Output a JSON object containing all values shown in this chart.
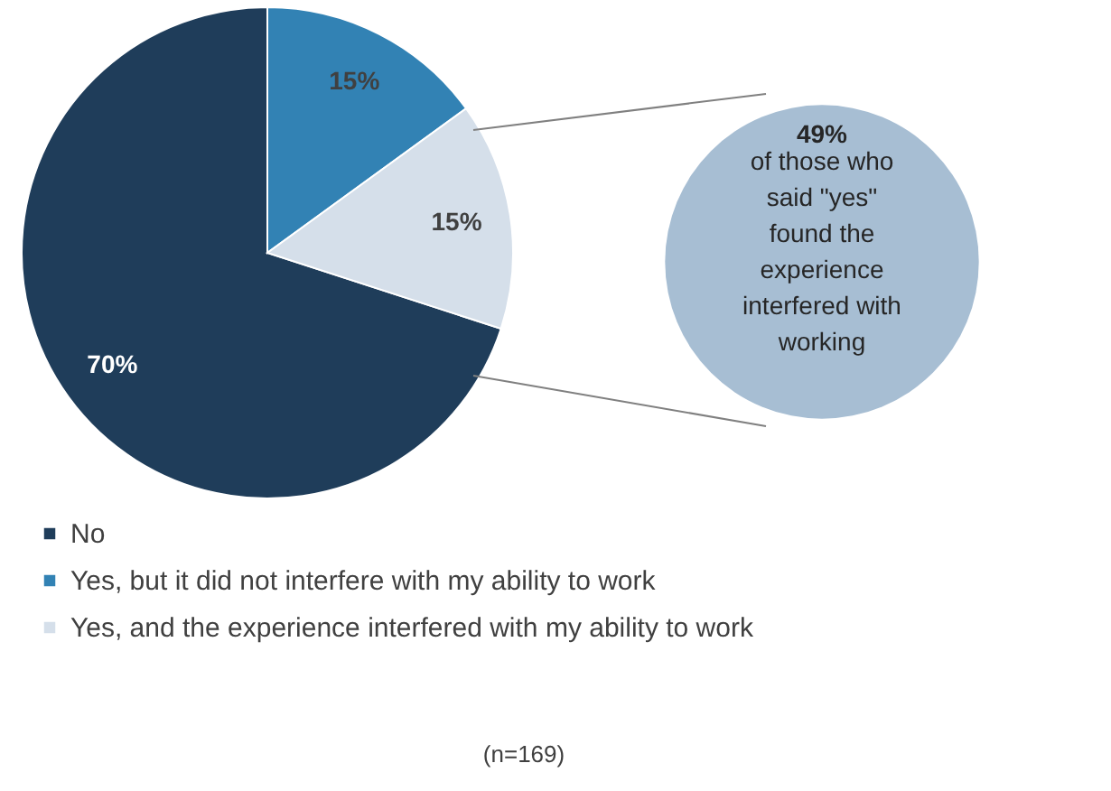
{
  "chart_data": {
    "type": "pie",
    "categories": [
      "No",
      "Yes, but it did not interfere with my ability to work",
      "Yes, and the experience interfered with my ability to work"
    ],
    "values": [
      70,
      15,
      15
    ],
    "colors": [
      "#1f3d5a",
      "#3282b4",
      "#d5dfea"
    ],
    "value_labels": [
      "70%",
      "15%",
      "15%"
    ],
    "legend": "bottom",
    "annotations": [
      "49% of those who said \"yes\" found the experience interfered with working",
      "(n=169)"
    ]
  }
}
